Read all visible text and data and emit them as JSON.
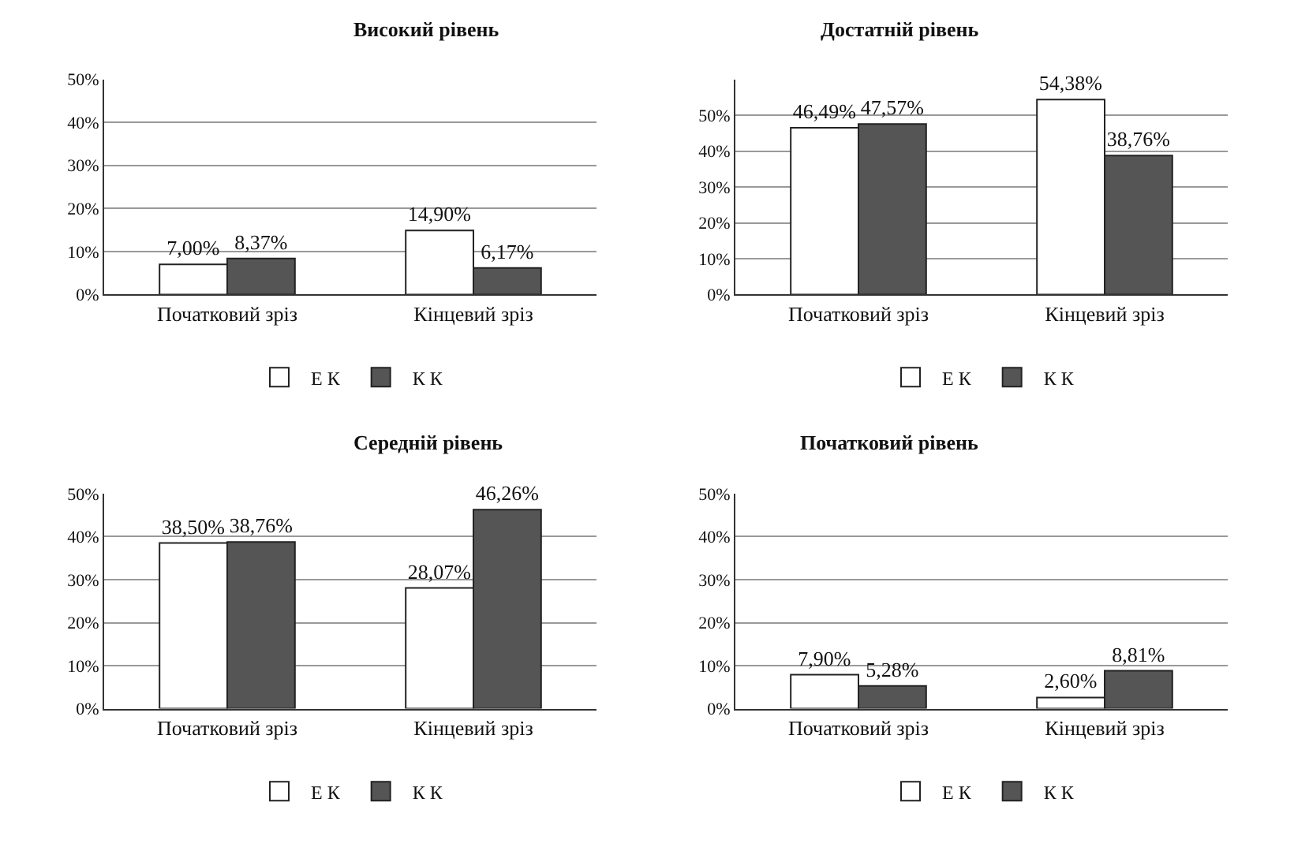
{
  "chart_data": [
    {
      "type": "bar",
      "title": "Високий рівень",
      "categories": [
        "Початковий зріз",
        "Кінцевий зріз"
      ],
      "ylim": [
        0,
        50
      ],
      "yticks": [
        {
          "value": 0,
          "label": "0%"
        },
        {
          "value": 10,
          "label": "10%"
        },
        {
          "value": 20,
          "label": "20%"
        },
        {
          "value": 30,
          "label": "30%"
        },
        {
          "value": 40,
          "label": "40%"
        },
        {
          "value": 50,
          "label": "50%"
        }
      ],
      "grid": "y",
      "legend": "bottom",
      "series": [
        {
          "name": "Е К",
          "color": "#ffffff",
          "values": [
            7.0,
            14.9
          ],
          "value_labels": [
            "7,00%",
            "14,90%"
          ]
        },
        {
          "name": "К К",
          "color": "#555555",
          "values": [
            8.37,
            6.17
          ],
          "value_labels": [
            "8,37%",
            "6,17%"
          ]
        }
      ]
    },
    {
      "type": "bar",
      "title": "Достатній рівень",
      "categories": [
        "Початковий зріз",
        "Кінцевий зріз"
      ],
      "ylim": [
        0,
        60
      ],
      "yticks": [
        {
          "value": 0,
          "label": "0%"
        },
        {
          "value": 10,
          "label": "10%"
        },
        {
          "value": 20,
          "label": "20%"
        },
        {
          "value": 30,
          "label": "30%"
        },
        {
          "value": 40,
          "label": "40%"
        },
        {
          "value": 50,
          "label": "50%"
        }
      ],
      "grid": "y",
      "legend": "bottom",
      "series": [
        {
          "name": "Е К",
          "color": "#ffffff",
          "values": [
            46.49,
            54.38
          ],
          "value_labels": [
            "46,49%",
            "54,38%"
          ]
        },
        {
          "name": "К К",
          "color": "#555555",
          "values": [
            47.57,
            38.76
          ],
          "value_labels": [
            "47,57%",
            "38,76%"
          ]
        }
      ]
    },
    {
      "type": "bar",
      "title": "Середній рівень",
      "categories": [
        "Початковий зріз",
        "Кінцевий зріз"
      ],
      "ylim": [
        0,
        50
      ],
      "yticks": [
        {
          "value": 0,
          "label": "0%"
        },
        {
          "value": 10,
          "label": "10%"
        },
        {
          "value": 20,
          "label": "20%"
        },
        {
          "value": 30,
          "label": "30%"
        },
        {
          "value": 40,
          "label": "40%"
        },
        {
          "value": 50,
          "label": "50%"
        }
      ],
      "grid": "y",
      "legend": "bottom",
      "series": [
        {
          "name": "Е К",
          "color": "#ffffff",
          "values": [
            38.5,
            28.07
          ],
          "value_labels": [
            "38,50%",
            "28,07%"
          ]
        },
        {
          "name": "К К",
          "color": "#555555",
          "values": [
            38.76,
            46.26
          ],
          "value_labels": [
            "38,76%",
            "46,26%"
          ]
        }
      ]
    },
    {
      "type": "bar",
      "title": "Початковий рівень",
      "categories": [
        "Початковий зріз",
        "Кінцевий зріз"
      ],
      "ylim": [
        0,
        50
      ],
      "yticks": [
        {
          "value": 0,
          "label": "0%"
        },
        {
          "value": 10,
          "label": "10%"
        },
        {
          "value": 20,
          "label": "20%"
        },
        {
          "value": 30,
          "label": "30%"
        },
        {
          "value": 40,
          "label": "40%"
        },
        {
          "value": 50,
          "label": "50%"
        }
      ],
      "grid": "y",
      "legend": "bottom",
      "series": [
        {
          "name": "Е К",
          "color": "#ffffff",
          "values": [
            7.9,
            2.6
          ],
          "value_labels": [
            "7,90%",
            "2,60%"
          ]
        },
        {
          "name": "К К",
          "color": "#555555",
          "values": [
            5.28,
            8.81
          ],
          "value_labels": [
            "5,28%",
            "8,81%"
          ]
        }
      ]
    }
  ]
}
